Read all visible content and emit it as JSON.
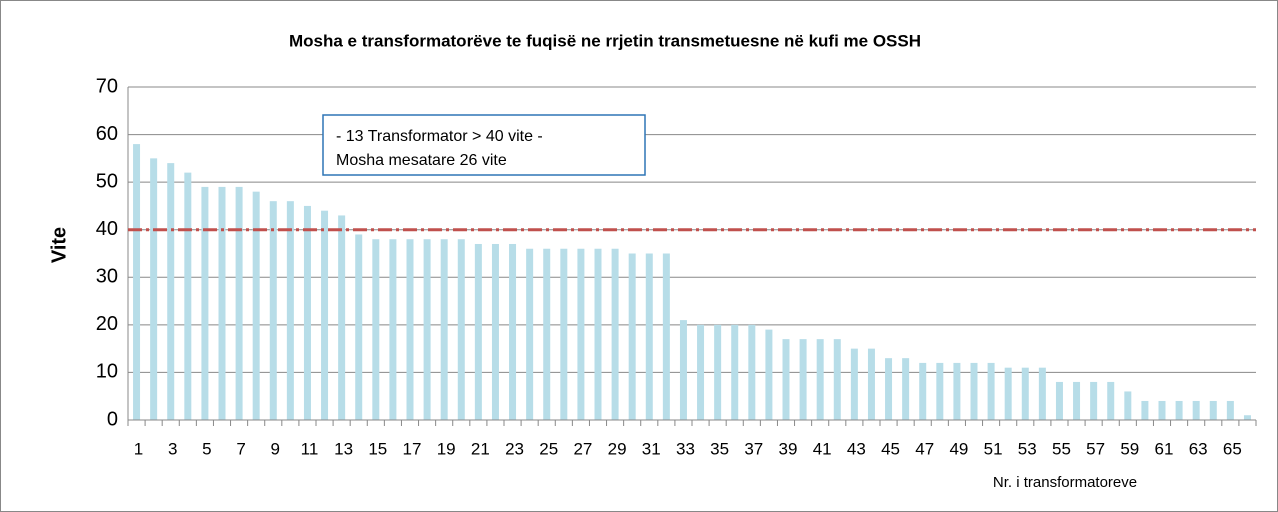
{
  "chart_data": {
    "type": "bar",
    "title": "Mosha e transformatorëve te fuqisë ne rrjetin transmetuesne në  kufi me OSSH",
    "y_label": "Vite",
    "x_label": "Nr. i transformatoreve",
    "annotation": [
      "- 13 Transformator > 40 vite  -",
      "Mosha mesatare 26 vite"
    ],
    "categories": [
      1,
      null,
      3,
      null,
      5,
      null,
      7,
      null,
      9,
      null,
      11,
      null,
      13,
      null,
      15,
      null,
      17,
      null,
      19,
      null,
      21,
      null,
      23,
      null,
      25,
      null,
      27,
      null,
      29,
      null,
      31,
      null,
      33,
      null,
      35,
      null,
      37,
      null,
      39,
      null,
      41,
      null,
      43,
      null,
      45,
      null,
      47,
      null,
      49,
      null,
      51,
      null,
      53,
      null,
      55,
      null,
      57,
      null,
      59,
      null,
      61,
      null,
      63,
      null,
      65,
      null
    ],
    "values": [
      58,
      55,
      54,
      52,
      49,
      49,
      49,
      48,
      46,
      46,
      45,
      44,
      43,
      39,
      38,
      38,
      38,
      38,
      38,
      38,
      37,
      37,
      37,
      36,
      36,
      36,
      36,
      36,
      36,
      35,
      35,
      35,
      21,
      20,
      20,
      20,
      20,
      19,
      17,
      17,
      17,
      17,
      15,
      15,
      13,
      13,
      12,
      12,
      12,
      12,
      12,
      11,
      11,
      11,
      8,
      8,
      8,
      8,
      6,
      4,
      4,
      4,
      4,
      4,
      4,
      1
    ],
    "color": "#b7dde8",
    "reference_line": {
      "value": 40,
      "color": "#c0504d"
    },
    "ylim": [
      0,
      70
    ],
    "yticks": [
      0,
      10,
      20,
      30,
      40,
      50,
      60,
      70
    ],
    "grid": true
  }
}
